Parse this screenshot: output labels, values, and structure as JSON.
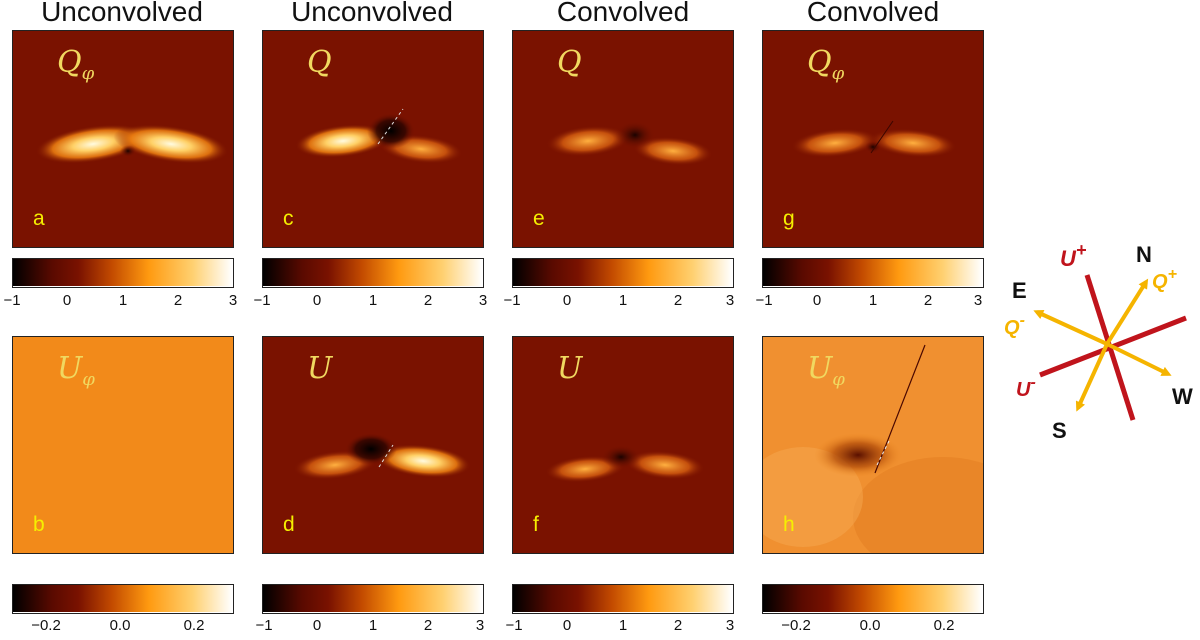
{
  "column_titles": [
    "Unconvolved",
    "Unconvolved",
    "Convolved",
    "Convolved"
  ],
  "panels": [
    {
      "letter": "a",
      "quantity": "Q",
      "subscript": "φ"
    },
    {
      "letter": "c",
      "quantity": "Q",
      "subscript": ""
    },
    {
      "letter": "e",
      "quantity": "Q",
      "subscript": ""
    },
    {
      "letter": "g",
      "quantity": "Q",
      "subscript": "φ"
    },
    {
      "letter": "b",
      "quantity": "U",
      "subscript": "φ"
    },
    {
      "letter": "d",
      "quantity": "U",
      "subscript": ""
    },
    {
      "letter": "f",
      "quantity": "U",
      "subscript": ""
    },
    {
      "letter": "h",
      "quantity": "U",
      "subscript": "φ"
    }
  ],
  "colorbars": {
    "wide": [
      "−1",
      "0",
      "1",
      "2",
      "3"
    ],
    "narrow": [
      "−0.2",
      "0.0",
      "0.2"
    ]
  },
  "colormap": [
    "#000000",
    "#5a0a00",
    "#7a1200",
    "#c24a00",
    "#ff9a10",
    "#ffd070",
    "#ffffff"
  ],
  "compass": {
    "north": "N",
    "south": "S",
    "east": "E",
    "west": "W",
    "u_plus": "U",
    "u_plus_sign": "+",
    "u_minus": "U",
    "u_minus_sign": "-",
    "q_plus": "Q",
    "q_plus_sign": "+",
    "q_minus": "Q",
    "q_minus_sign": "-",
    "u_color": "#c0141c",
    "q_color": "#f5b400"
  }
}
